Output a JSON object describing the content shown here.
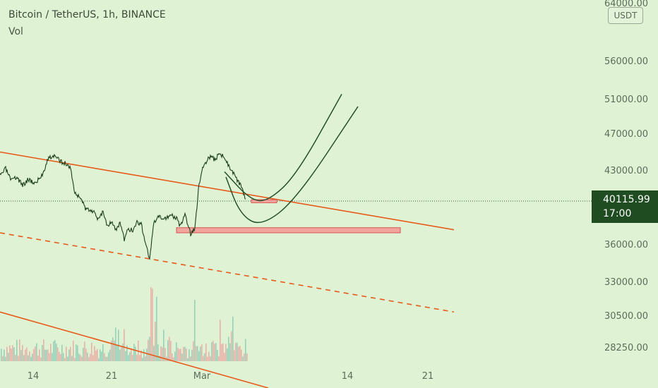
{
  "header": {
    "symbol_line": "Bitcoin / TetherUS, 1h, BINANCE",
    "volume_label": "Vol",
    "currency_button": "USDT"
  },
  "price_badge": {
    "price": "40115.99",
    "countdown": "17:00"
  },
  "chart_data": {
    "type": "line",
    "title": "Bitcoin / TetherUS, 1h, BINANCE",
    "y_axis_ticks": [
      "64000.00",
      "56000.00",
      "51000.00",
      "47000.00",
      "43000.00",
      "40115.99",
      "36000.00",
      "33000.00",
      "30500.00",
      "28250.00"
    ],
    "x_axis_ticks": [
      "14",
      "21",
      "Mar",
      "14",
      "21"
    ],
    "last_price": 40115.99,
    "series": [
      {
        "values": [
          [
            0,
            42500
          ],
          [
            8,
            43200
          ],
          [
            16,
            42000
          ],
          [
            24,
            42400
          ],
          [
            32,
            41600
          ],
          [
            40,
            42200
          ],
          [
            50,
            41800
          ],
          [
            60,
            42600
          ],
          [
            68,
            44300
          ],
          [
            76,
            44600
          ],
          [
            84,
            44100
          ],
          [
            92,
            43800
          ],
          [
            100,
            43300
          ],
          [
            106,
            40800
          ],
          [
            114,
            40500
          ],
          [
            122,
            39200
          ],
          [
            130,
            39300
          ],
          [
            138,
            38400
          ],
          [
            146,
            39100
          ],
          [
            152,
            37700
          ],
          [
            158,
            38200
          ],
          [
            164,
            37200
          ],
          [
            170,
            38000
          ],
          [
            176,
            36400
          ],
          [
            182,
            37400
          ],
          [
            188,
            37200
          ],
          [
            194,
            38100
          ],
          [
            200,
            37800
          ],
          [
            206,
            36200
          ],
          [
            212,
            34800
          ],
          [
            218,
            37900
          ],
          [
            224,
            38500
          ],
          [
            232,
            38400
          ],
          [
            240,
            38700
          ],
          [
            248,
            38600
          ],
          [
            256,
            37600
          ],
          [
            262,
            38800
          ],
          [
            270,
            36900
          ],
          [
            276,
            37400
          ],
          [
            282,
            41800
          ],
          [
            288,
            43500
          ],
          [
            296,
            44500
          ],
          [
            304,
            44200
          ],
          [
            312,
            44900
          ],
          [
            318,
            44300
          ],
          [
            324,
            43600
          ],
          [
            330,
            42800
          ],
          [
            336,
            42100
          ],
          [
            342,
            41400
          ],
          [
            348,
            40300
          ]
        ]
      }
    ],
    "drawings": {
      "channel_upper": {
        "from": [
          0,
          45000
        ],
        "to": [
          643,
          37300
        ],
        "style": "solid",
        "color": "#e85a1a"
      },
      "channel_middle": {
        "from": [
          0,
          37000
        ],
        "to": [
          643,
          30800
        ],
        "style": "dashed",
        "color": "#e85a1a"
      },
      "channel_lower": {
        "from": [
          0,
          30800
        ],
        "to": [
          380,
          26000
        ],
        "style": "solid",
        "color": "#e85a1a"
      },
      "support_zone_small": {
        "x": [
          356,
          392
        ],
        "y": [
          39950,
          40250
        ],
        "color": "#f2a59e"
      },
      "support_zone_large": {
        "x": [
          250,
          567
        ],
        "y": [
          37000,
          37500
        ],
        "color": "#f2a59e"
      },
      "curve_upper": [
        [
          318,
          42900
        ],
        [
          355,
          40200
        ],
        [
          380,
          40100
        ],
        [
          420,
          42600
        ],
        [
          484,
          51600
        ]
      ],
      "curve_lower": [
        [
          320,
          42400
        ],
        [
          340,
          38800
        ],
        [
          370,
          37600
        ],
        [
          420,
          40300
        ],
        [
          507,
          50100
        ]
      ]
    },
    "volume": {
      "label": "Vol",
      "color_up": "#7cc7b0",
      "color_down": "#ef9a9a"
    },
    "colors": {
      "price_line": "#1c3f1e",
      "badge": "#1f4d21",
      "background": "#dff2d3"
    }
  }
}
